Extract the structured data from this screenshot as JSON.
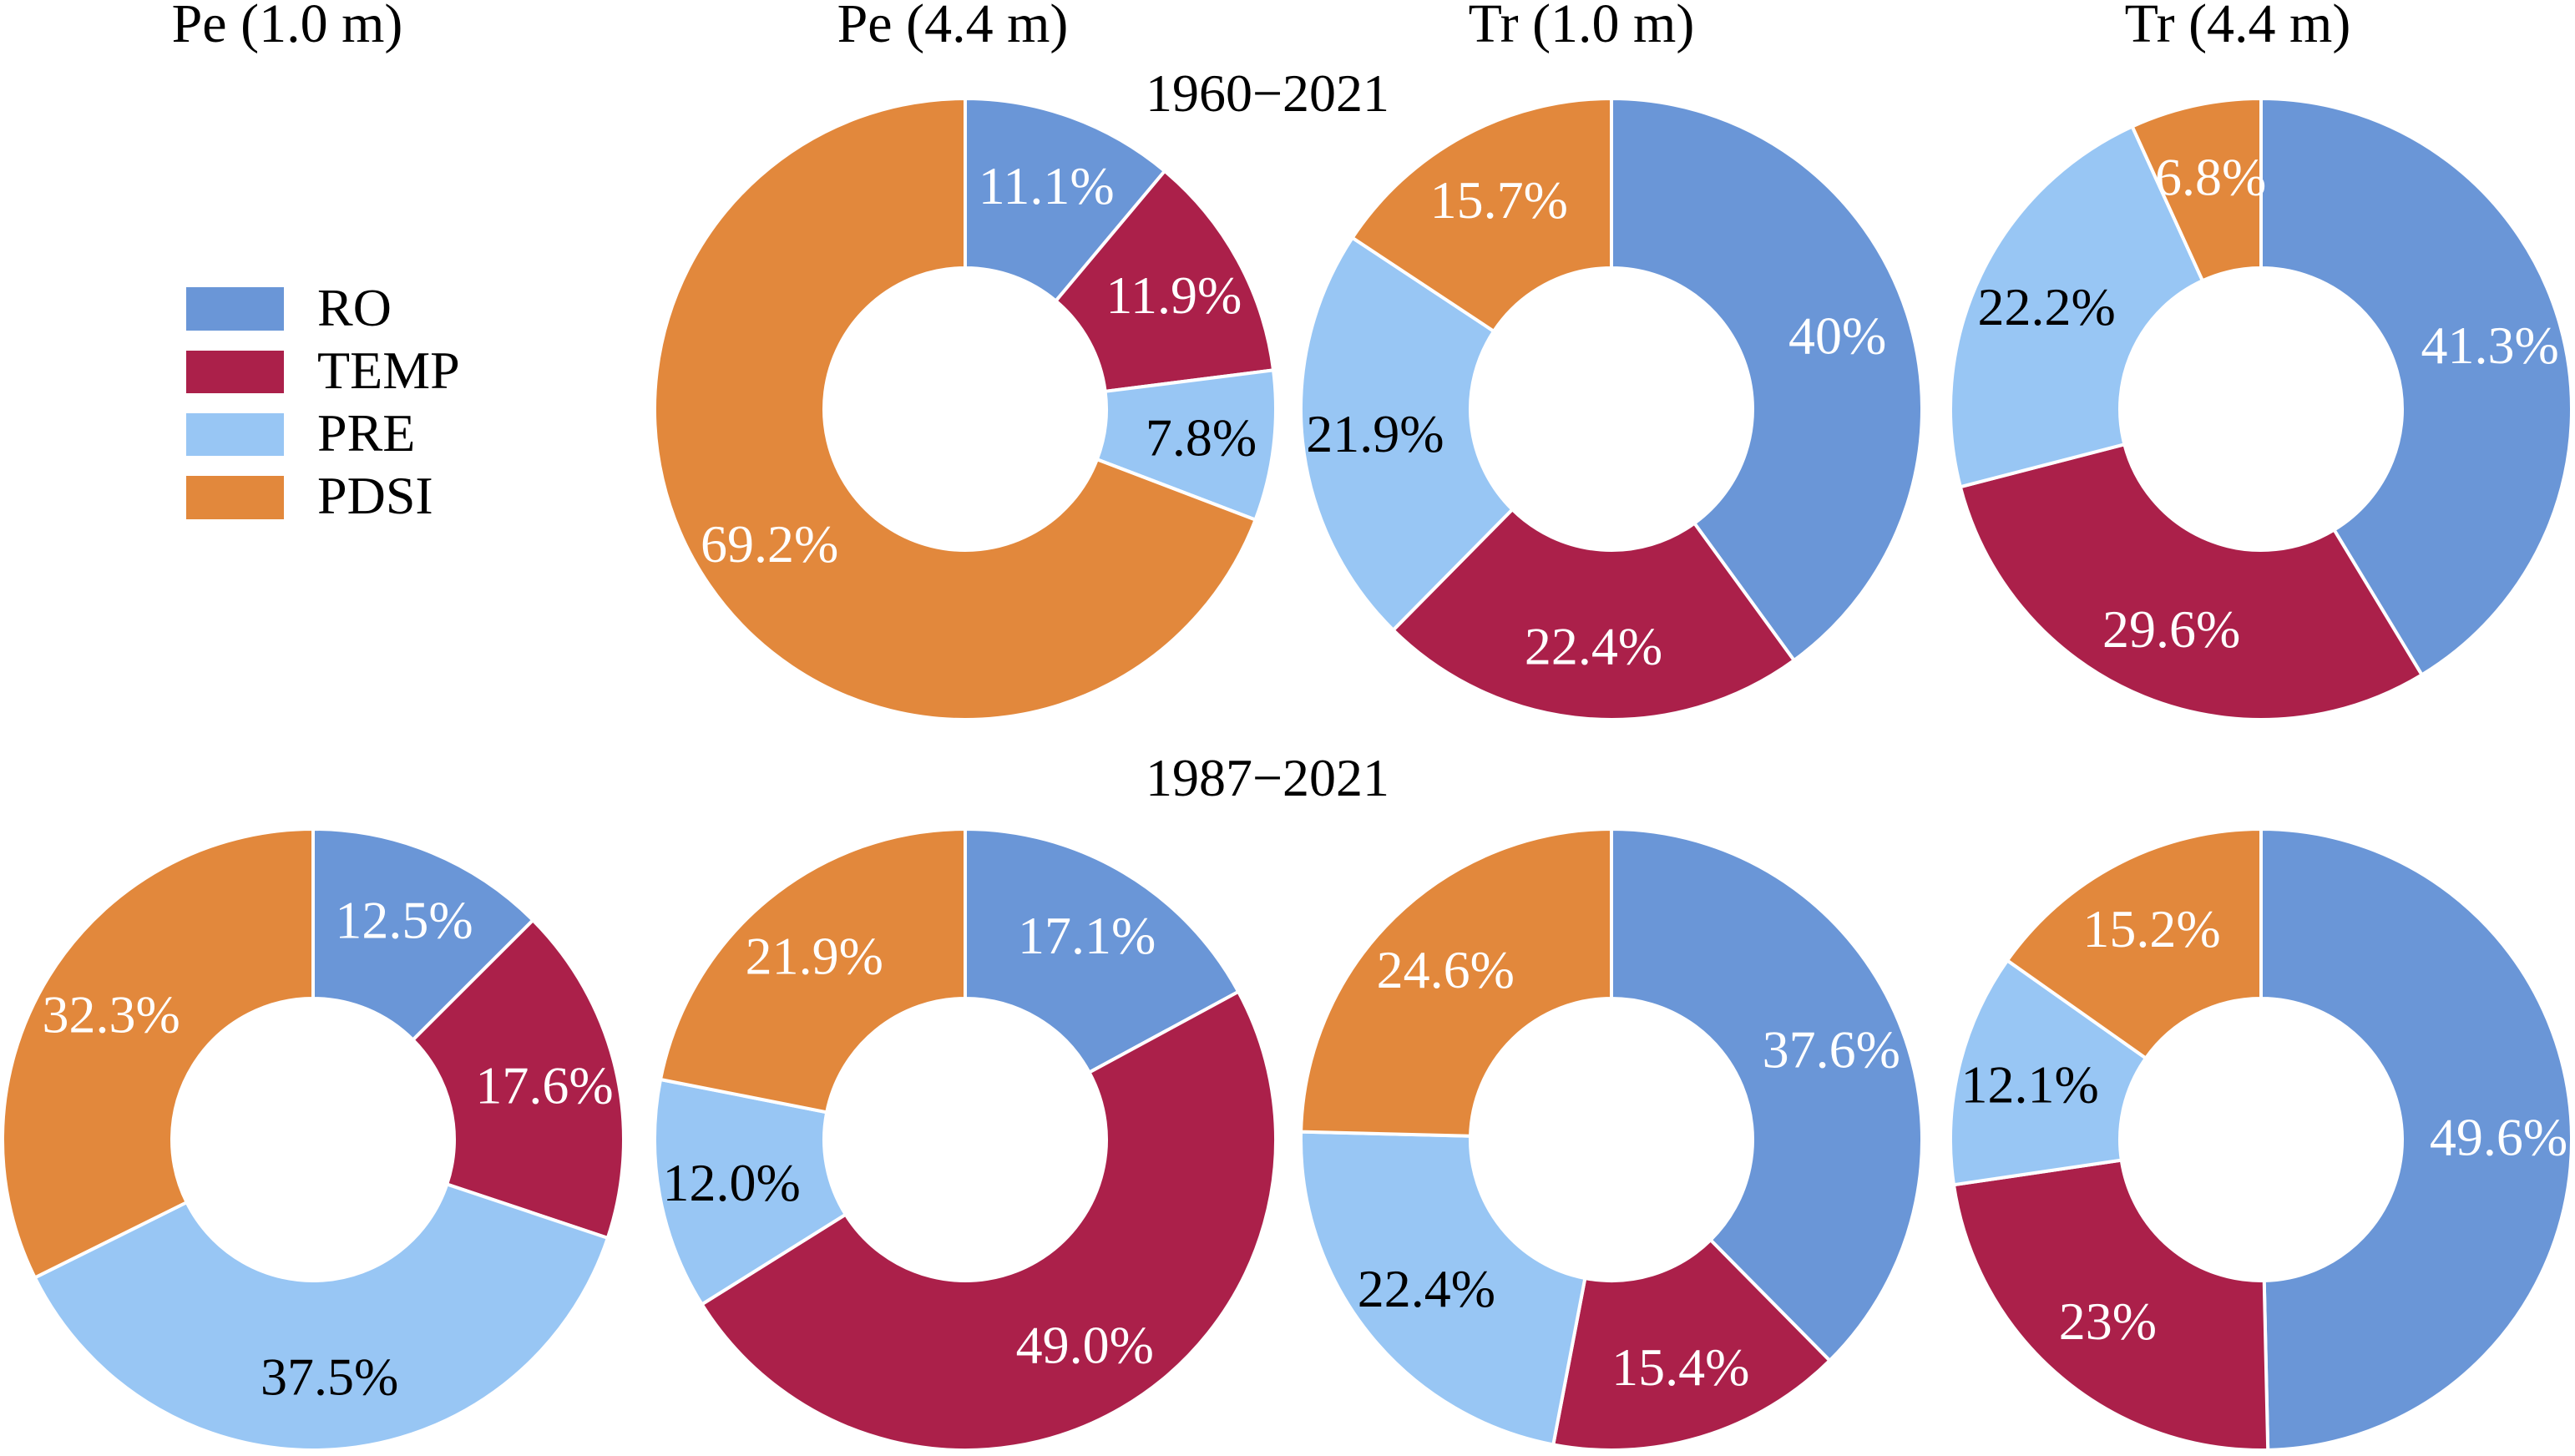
{
  "chart_data": {
    "type": "pie",
    "variant": "donut",
    "legend": {
      "placement": "upper-left",
      "entries": [
        {
          "name": "RO",
          "color": "#6a96d7"
        },
        {
          "name": "TEMP",
          "color": "#ab204a"
        },
        {
          "name": "PRE",
          "color": "#98c6f4"
        },
        {
          "name": "PDSI",
          "color": "#e2883c"
        }
      ]
    },
    "column_titles": [
      "Pe (1.0 m)",
      "Pe (4.4 m)",
      "Tr (1.0 m)",
      "Tr (4.4 m)"
    ],
    "periods": [
      "1960−2021",
      "1987−2021"
    ],
    "categories": [
      "RO",
      "TEMP",
      "PRE",
      "PDSI"
    ],
    "label_colors": {
      "RO": "#ffffff",
      "TEMP": "#ffffff",
      "PRE": "#000000",
      "PDSI": "#ffffff"
    },
    "charts": [
      {
        "period": "1960−2021",
        "column": "Pe (4.4 m)",
        "values": [
          11.1,
          11.9,
          7.8,
          69.2
        ],
        "labels": [
          "11.1%",
          "11.9%",
          "7.8%",
          "69.2%"
        ]
      },
      {
        "period": "1960−2021",
        "column": "Tr (1.0 m)",
        "values": [
          40,
          22.4,
          21.9,
          15.7
        ],
        "labels": [
          "40%",
          "22.4%",
          "21.9%",
          "15.7%"
        ]
      },
      {
        "period": "1960−2021",
        "column": "Tr (4.4 m)",
        "values": [
          41.3,
          29.6,
          22.2,
          6.8
        ],
        "labels": [
          "41.3%",
          "29.6%",
          "22.2%",
          "6.8%"
        ]
      },
      {
        "period": "1987−2021",
        "column": "Pe (1.0 m)",
        "values": [
          12.5,
          17.6,
          37.5,
          32.3
        ],
        "labels": [
          "12.5%",
          "17.6%",
          "37.5%",
          "32.3%"
        ]
      },
      {
        "period": "1987−2021",
        "column": "Pe (4.4 m)",
        "values": [
          17.1,
          49.0,
          12.0,
          21.9
        ],
        "labels": [
          "17.1%",
          "49.0%",
          "12.0%",
          "21.9%"
        ]
      },
      {
        "period": "1987−2021",
        "column": "Tr (1.0 m)",
        "values": [
          37.6,
          15.4,
          22.4,
          24.6
        ],
        "labels": [
          "37.6%",
          "15.4%",
          "22.4%",
          "24.6%"
        ]
      },
      {
        "period": "1987−2021",
        "column": "Tr (4.4 m)",
        "values": [
          49.6,
          23,
          12.1,
          15.2
        ],
        "labels": [
          "49.6%",
          "23%",
          "12.1%",
          "15.2%"
        ]
      }
    ]
  }
}
